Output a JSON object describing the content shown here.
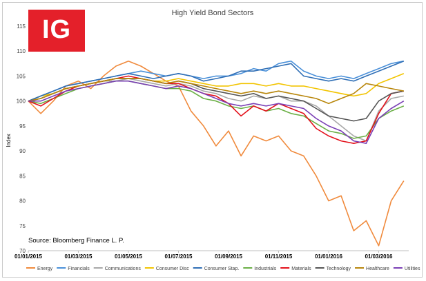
{
  "logo": {
    "text": "IG",
    "color": "#e4202a"
  },
  "source": "Source: Bloomberg Finance L. P.",
  "chart_data": {
    "type": "line",
    "title": "High Yield Bond Sectors",
    "xlabel": "",
    "ylabel": "Index",
    "ylim": [
      70,
      115
    ],
    "yticks": [
      70,
      75,
      80,
      85,
      90,
      95,
      100,
      105,
      110,
      115
    ],
    "x_tick_labels": [
      "01/01/2015",
      "01/03/2015",
      "01/05/2015",
      "01/07/2015",
      "01/09/2015",
      "01/11/2015",
      "01/01/2016",
      "01/03/2016"
    ],
    "x_tick_positions": [
      0,
      2,
      4,
      6,
      8,
      10,
      12,
      14
    ],
    "xlim": [
      0,
      15.2
    ],
    "grid": false,
    "legend": "bottom",
    "x": [
      0,
      0.5,
      1,
      1.5,
      2,
      2.5,
      3,
      3.5,
      4,
      4.5,
      5,
      5.5,
      6,
      6.5,
      7,
      7.5,
      8,
      8.5,
      9,
      9.5,
      10,
      10.5,
      11,
      11.5,
      12,
      12.5,
      13,
      13.5,
      14,
      14.5,
      15
    ],
    "series": [
      {
        "name": "Energy",
        "color": "#f08a3c",
        "values": [
          100,
          97.5,
          100,
          103,
          104,
          102.5,
          105,
          107,
          108,
          107,
          105.5,
          104,
          103,
          98,
          95,
          91,
          94,
          89,
          93,
          92,
          93,
          90,
          89,
          85,
          80,
          81,
          74,
          76,
          71,
          80,
          84
        ]
      },
      {
        "name": "Financials",
        "color": "#4a90d9",
        "values": [
          100,
          101,
          102,
          103,
          103.5,
          104,
          104.5,
          105,
          105.5,
          106,
          105.5,
          105,
          105.5,
          105,
          104.5,
          105,
          105,
          105.5,
          106.5,
          106,
          107.5,
          108,
          106,
          105,
          104.5,
          105,
          104.5,
          105.5,
          106.5,
          107.5,
          108
        ]
      },
      {
        "name": "Communications",
        "color": "#a8a8a8",
        "values": [
          100,
          100.5,
          101.5,
          102.5,
          103,
          103.5,
          104,
          104,
          104.5,
          104,
          103.5,
          103,
          103.5,
          103,
          102,
          101.5,
          100.5,
          100,
          101,
          100.5,
          101,
          100,
          100,
          99,
          97,
          95,
          93,
          92,
          98,
          100.5,
          101
        ]
      },
      {
        "name": "Consumer Disc",
        "color": "#f2c400",
        "values": [
          100,
          101,
          101.5,
          102.5,
          103,
          103.5,
          104,
          104.5,
          104.5,
          104.5,
          104,
          104,
          104.5,
          104,
          103.5,
          103,
          103,
          103.5,
          103.5,
          103,
          103.5,
          103,
          103,
          102.5,
          102,
          101.5,
          101,
          101.5,
          103.5,
          104.5,
          105.5
        ]
      },
      {
        "name": "Consumer Stap.",
        "color": "#2f6eb5",
        "values": [
          100,
          101,
          102,
          103,
          103.5,
          104,
          104.5,
          105,
          105.5,
          105,
          104.5,
          105,
          105.5,
          105,
          104,
          104.5,
          105,
          106,
          106,
          106.5,
          107,
          107.5,
          105,
          104.5,
          104,
          104.5,
          104,
          105,
          106,
          107,
          108
        ]
      },
      {
        "name": "Industrials",
        "color": "#6aaf45",
        "values": [
          100,
          99.5,
          100.5,
          101.5,
          102.5,
          103,
          103.5,
          104,
          104,
          103.5,
          103,
          102.5,
          102.5,
          102,
          100.5,
          100,
          99,
          98.5,
          99,
          98,
          98.5,
          97.5,
          97,
          95.5,
          94,
          93.5,
          92.5,
          93,
          96.5,
          98,
          99
        ]
      },
      {
        "name": "Materials",
        "color": "#e3101a",
        "values": [
          100,
          99,
          100.5,
          102,
          103,
          103.5,
          104,
          104.5,
          105,
          104.5,
          104,
          103.5,
          103.5,
          102.5,
          101.5,
          101,
          99.5,
          97,
          99,
          98,
          99.5,
          98.5,
          97.5,
          94.5,
          93,
          92,
          91.5,
          92,
          97.5,
          101.5,
          102
        ]
      },
      {
        "name": "Technology",
        "color": "#555555",
        "values": [
          100,
          100.5,
          101.5,
          102.5,
          103,
          103.5,
          104,
          104.5,
          104.5,
          104.5,
          104,
          103.5,
          104,
          103.5,
          102.5,
          102,
          101.5,
          101,
          101.5,
          100.5,
          101,
          100.5,
          100,
          98.5,
          97,
          96.5,
          96,
          96.5,
          100,
          101.5,
          102
        ]
      },
      {
        "name": "Healthcare",
        "color": "#b8860b",
        "values": [
          100,
          100.5,
          101.5,
          102.5,
          103,
          103.5,
          104,
          104.5,
          104.5,
          104.5,
          104,
          103.5,
          104,
          103.5,
          103,
          102.5,
          102,
          101.5,
          102,
          101.5,
          102,
          101.5,
          101,
          100.5,
          99.5,
          100.5,
          101.5,
          103.5,
          103,
          102.5,
          102
        ]
      },
      {
        "name": "Utilities",
        "color": "#7a3fb5",
        "values": [
          100,
          100,
          101,
          102,
          102.5,
          103,
          103.5,
          104,
          104,
          103.5,
          103,
          102.5,
          103,
          102.5,
          101.5,
          100.5,
          99.5,
          99,
          99.5,
          99,
          99.5,
          99,
          98.5,
          96.5,
          95,
          94,
          92,
          91.5,
          96.5,
          98.5,
          100
        ]
      }
    ]
  }
}
